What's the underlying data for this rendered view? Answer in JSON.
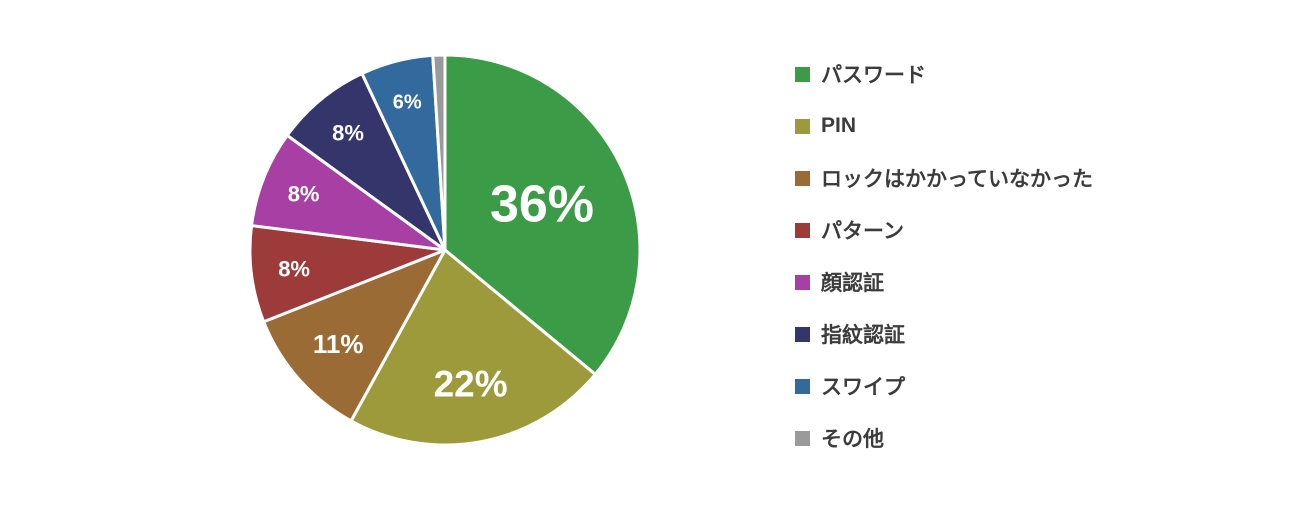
{
  "chart_data": {
    "type": "pie",
    "title": "",
    "legend_position": "right",
    "start_angle_deg": 0,
    "direction": "clockwise",
    "slices": [
      {
        "label": "パスワード",
        "value": 36,
        "display_label": "36%",
        "color": "#3c9b46"
      },
      {
        "label": "PIN",
        "value": 22,
        "display_label": "22%",
        "color": "#9c9a3a"
      },
      {
        "label": "ロックはかかっていなかった",
        "value": 11,
        "display_label": "11%",
        "color": "#9a6b34"
      },
      {
        "label": "パターン",
        "value": 8,
        "display_label": "8%",
        "color": "#9d3a3a"
      },
      {
        "label": "顔認証",
        "value": 8,
        "display_label": "8%",
        "color": "#a83fa4"
      },
      {
        "label": "指紋認証",
        "value": 8,
        "display_label": "8%",
        "color": "#34356b"
      },
      {
        "label": "スワイプ",
        "value": 6,
        "display_label": "6%",
        "color": "#336a9e"
      },
      {
        "label": "その他",
        "value": 1,
        "display_label": "",
        "color": "#9a9a9a"
      }
    ],
    "slice_border_color": "#ffffff",
    "legend_text_color": "#3c3c3c",
    "background_color": "#ffffff"
  }
}
